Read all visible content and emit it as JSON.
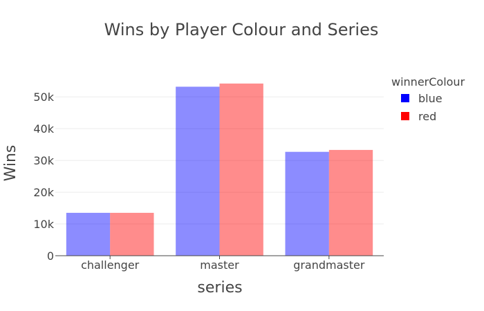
{
  "chart_data": {
    "type": "bar",
    "title": "Wins by Player Colour and Series",
    "xlabel": "series",
    "ylabel": "Wins",
    "categories": [
      "challenger",
      "master",
      "grandmaster"
    ],
    "series": [
      {
        "name": "blue",
        "color": "#0000ff",
        "values": [
          13500,
          53200,
          32700
        ]
      },
      {
        "name": "red",
        "color": "#ff0000",
        "values": [
          13500,
          54200,
          33300
        ]
      }
    ],
    "ylim": [
      0,
      57000
    ],
    "y_ticks": [
      0,
      10000,
      20000,
      30000,
      40000,
      50000
    ],
    "y_tick_labels": [
      "0",
      "10k",
      "20k",
      "30k",
      "40k",
      "50k"
    ],
    "bar_opacity": 0.45,
    "grid": true,
    "legend": {
      "title": "winnerColour",
      "position": "right"
    }
  }
}
